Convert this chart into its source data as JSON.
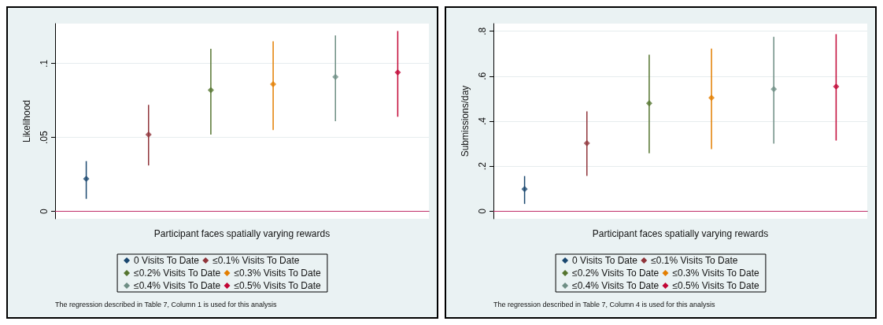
{
  "chart_data": [
    {
      "type": "scatter",
      "ylabel": "Likelihood",
      "xlabel": "Participant faces spatially varying rewards",
      "categories": [
        null,
        null,
        null,
        null,
        null,
        null
      ],
      "ylim": [
        -0.005,
        0.127
      ],
      "yticks": [
        0,
        {
          "value": 0.05,
          "label": ".05"
        },
        {
          "value": 0.1,
          "label": ".1"
        }
      ],
      "grid": "y",
      "legend": "bottom",
      "marker": "diamond",
      "ref_lines": [
        {
          "axis": "y",
          "value": 0,
          "color": "#c0306a"
        }
      ],
      "annotations": [
        "The regression described in Table 7, Column 1 is used for this analysis"
      ],
      "series": [
        {
          "name": "0 Visits To Date",
          "color": "#1a476f",
          "values": [
            0.022,
            null,
            null,
            null,
            null,
            null
          ],
          "errors": [
            [
              0.0085,
              0.034
            ],
            null,
            null,
            null,
            null,
            null
          ]
        },
        {
          "name": "≤0.1% Visits To Date",
          "color": "#90353b",
          "values": [
            null,
            0.052,
            null,
            null,
            null,
            null
          ],
          "errors": [
            null,
            [
              0.031,
              0.072
            ],
            null,
            null,
            null,
            null
          ]
        },
        {
          "name": "≤0.2% Visits To Date",
          "color": "#55752f",
          "values": [
            null,
            null,
            0.082,
            null,
            null,
            null
          ],
          "errors": [
            null,
            null,
            [
              0.052,
              0.11
            ],
            null,
            null,
            null
          ]
        },
        {
          "name": "≤0.3% Visits To Date",
          "color": "#e37e00",
          "values": [
            null,
            null,
            null,
            0.086,
            null,
            null
          ],
          "errors": [
            null,
            null,
            null,
            [
              0.055,
              0.115
            ],
            null,
            null
          ]
        },
        {
          "name": "≤0.4% Visits To Date",
          "color": "#6e8e84",
          "values": [
            null,
            null,
            null,
            null,
            0.091,
            null
          ],
          "errors": [
            null,
            null,
            null,
            null,
            [
              0.061,
              0.119
            ],
            null
          ]
        },
        {
          "name": "≤0.5% Visits To Date",
          "color": "#c10534",
          "values": [
            null,
            null,
            null,
            null,
            null,
            0.094
          ],
          "errors": [
            null,
            null,
            null,
            null,
            null,
            [
              0.064,
              0.122
            ]
          ]
        }
      ]
    },
    {
      "type": "scatter",
      "ylabel": "Submissions/day",
      "xlabel": "Participant faces spatially varying rewards",
      "categories": [
        null,
        null,
        null,
        null,
        null,
        null
      ],
      "ylim": [
        -0.034,
        0.834
      ],
      "yticks": [
        0,
        {
          "value": 0.2,
          "label": ".2"
        },
        {
          "value": 0.4,
          "label": ".4"
        },
        {
          "value": 0.6,
          "label": ".6"
        },
        {
          "value": 0.8,
          "label": ".8"
        }
      ],
      "grid": "y",
      "legend": "bottom",
      "marker": "diamond",
      "ref_lines": [
        {
          "axis": "y",
          "value": 0,
          "color": "#c0306a"
        }
      ],
      "annotations": [
        "The regression described in Table 7, Column 4 is used for this analysis"
      ],
      "series": [
        {
          "name": "0 Visits To Date",
          "color": "#1a476f",
          "values": [
            0.098,
            null,
            null,
            null,
            null,
            null
          ],
          "errors": [
            [
              0.032,
              0.156
            ],
            null,
            null,
            null,
            null,
            null
          ]
        },
        {
          "name": "≤0.1% Visits To Date",
          "color": "#90353b",
          "values": [
            null,
            0.302,
            null,
            null,
            null,
            null
          ],
          "errors": [
            null,
            [
              0.157,
              0.444
            ],
            null,
            null,
            null,
            null
          ]
        },
        {
          "name": "≤0.2% Visits To Date",
          "color": "#55752f",
          "values": [
            null,
            null,
            0.48,
            null,
            null,
            null
          ],
          "errors": [
            null,
            null,
            [
              0.257,
              0.696
            ],
            null,
            null,
            null
          ]
        },
        {
          "name": "≤0.3% Visits To Date",
          "color": "#e37e00",
          "values": [
            null,
            null,
            null,
            0.504,
            null,
            null
          ],
          "errors": [
            null,
            null,
            null,
            [
              0.276,
              0.723
            ],
            null,
            null
          ]
        },
        {
          "name": "≤0.4% Visits To Date",
          "color": "#6e8e84",
          "values": [
            null,
            null,
            null,
            null,
            0.543,
            null
          ],
          "errors": [
            null,
            null,
            null,
            null,
            [
              0.3,
              0.775
            ],
            null
          ]
        },
        {
          "name": "≤0.5% Visits To Date",
          "color": "#c10534",
          "values": [
            null,
            null,
            null,
            null,
            null,
            0.554
          ],
          "errors": [
            null,
            null,
            null,
            null,
            null,
            [
              0.314,
              0.787
            ]
          ]
        }
      ]
    }
  ]
}
